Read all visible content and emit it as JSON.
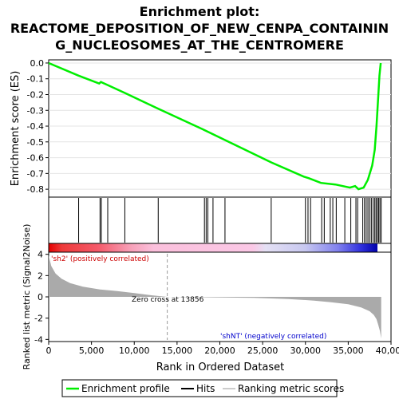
{
  "title_line1": "Enrichment plot:",
  "title_line2": "REACTOME_DEPOSITION_OF_NEW_CENPA_CONTAININ",
  "title_line3": "G_NUCLEOSOMES_AT_THE_CENTROMERE",
  "colors": {
    "es_line": "#00ee00",
    "hits": "#000000",
    "pos_label": "#cc0000",
    "neg_label": "#0000cc",
    "metric_fill": "#aaaaaa"
  },
  "legend": {
    "items": [
      {
        "label": "Enrichment profile",
        "color": "#00ee00",
        "kind": "line"
      },
      {
        "label": "Hits",
        "color": "#000000",
        "kind": "line"
      },
      {
        "label": "Ranking metric scores",
        "color": "#cccccc",
        "kind": "line"
      }
    ]
  },
  "chart_data": [
    {
      "type": "line",
      "name": "enrichment-profile",
      "ylabel": "Enrichment score (ES)",
      "ylim": [
        -0.85,
        0.02
      ],
      "yticks": [
        "0.0",
        "-0.1",
        "-0.2",
        "-0.3",
        "-0.4",
        "-0.5",
        "-0.6",
        "-0.7",
        "-0.8"
      ],
      "ytick_values": [
        0.0,
        -0.1,
        -0.2,
        -0.3,
        -0.4,
        -0.5,
        -0.6,
        -0.7,
        -0.8
      ],
      "xlim": [
        0,
        40000
      ],
      "x": [
        0,
        3500,
        5900,
        6100,
        6900,
        8900,
        12800,
        18000,
        26000,
        29800,
        30400,
        31800,
        33500,
        35200,
        35800,
        36200,
        36800,
        37300,
        37800,
        38100,
        38300,
        38500,
        38650,
        38800
      ],
      "y": [
        0.0,
        -0.08,
        -0.13,
        -0.12,
        -0.14,
        -0.19,
        -0.29,
        -0.42,
        -0.63,
        -0.72,
        -0.73,
        -0.76,
        -0.77,
        -0.79,
        -0.78,
        -0.8,
        -0.79,
        -0.74,
        -0.65,
        -0.55,
        -0.4,
        -0.22,
        -0.08,
        0.0
      ]
    },
    {
      "type": "scatter",
      "name": "hits",
      "x": [
        3500,
        6000,
        6150,
        6900,
        8900,
        12800,
        18200,
        18400,
        18600,
        19200,
        20600,
        26000,
        30000,
        30300,
        30600,
        31900,
        32200,
        32900,
        33200,
        33600,
        34600,
        35300,
        35900,
        36100,
        36700,
        36900,
        37100,
        37300,
        37500,
        37700,
        37900,
        38100,
        38250,
        38400,
        38550,
        38700,
        38850
      ]
    },
    {
      "type": "area",
      "name": "ranking-metric",
      "ylabel": "Ranked list metric (Signal2Noise)",
      "xlabel": "Rank in Ordered Dataset",
      "ylim": [
        -4.2,
        4.2
      ],
      "yticks": [
        "4",
        "2",
        "0",
        "-2",
        "-4"
      ],
      "ytick_values": [
        4,
        2,
        0,
        -2,
        -4
      ],
      "xlim": [
        0,
        40000
      ],
      "xticks": [
        "0",
        "5,000",
        "10,000",
        "15,000",
        "20,000",
        "25,000",
        "30,000",
        "35,000",
        "40,000"
      ],
      "xtick_values": [
        0,
        5000,
        10000,
        15000,
        20000,
        25000,
        30000,
        35000,
        40000
      ],
      "x": [
        0,
        300,
        800,
        1500,
        2500,
        4000,
        6000,
        8000,
        10000,
        12000,
        13856,
        16000,
        20000,
        24000,
        28000,
        31000,
        33000,
        35000,
        36500,
        37500,
        38000,
        38300,
        38500,
        38700,
        38850
      ],
      "y": [
        3.9,
        2.9,
        2.2,
        1.7,
        1.3,
        0.95,
        0.7,
        0.55,
        0.35,
        0.15,
        0.0,
        -0.03,
        -0.05,
        -0.1,
        -0.2,
        -0.35,
        -0.5,
        -0.7,
        -1.0,
        -1.35,
        -1.7,
        -2.1,
        -2.6,
        -3.2,
        -3.9
      ],
      "zero_cross": 13856,
      "annotations": {
        "zero_cross_text": "Zero cross at 13856",
        "pos_text": "'sh2' (positively correlated)",
        "neg_text": "'shNT' (negatively correlated)"
      }
    }
  ]
}
